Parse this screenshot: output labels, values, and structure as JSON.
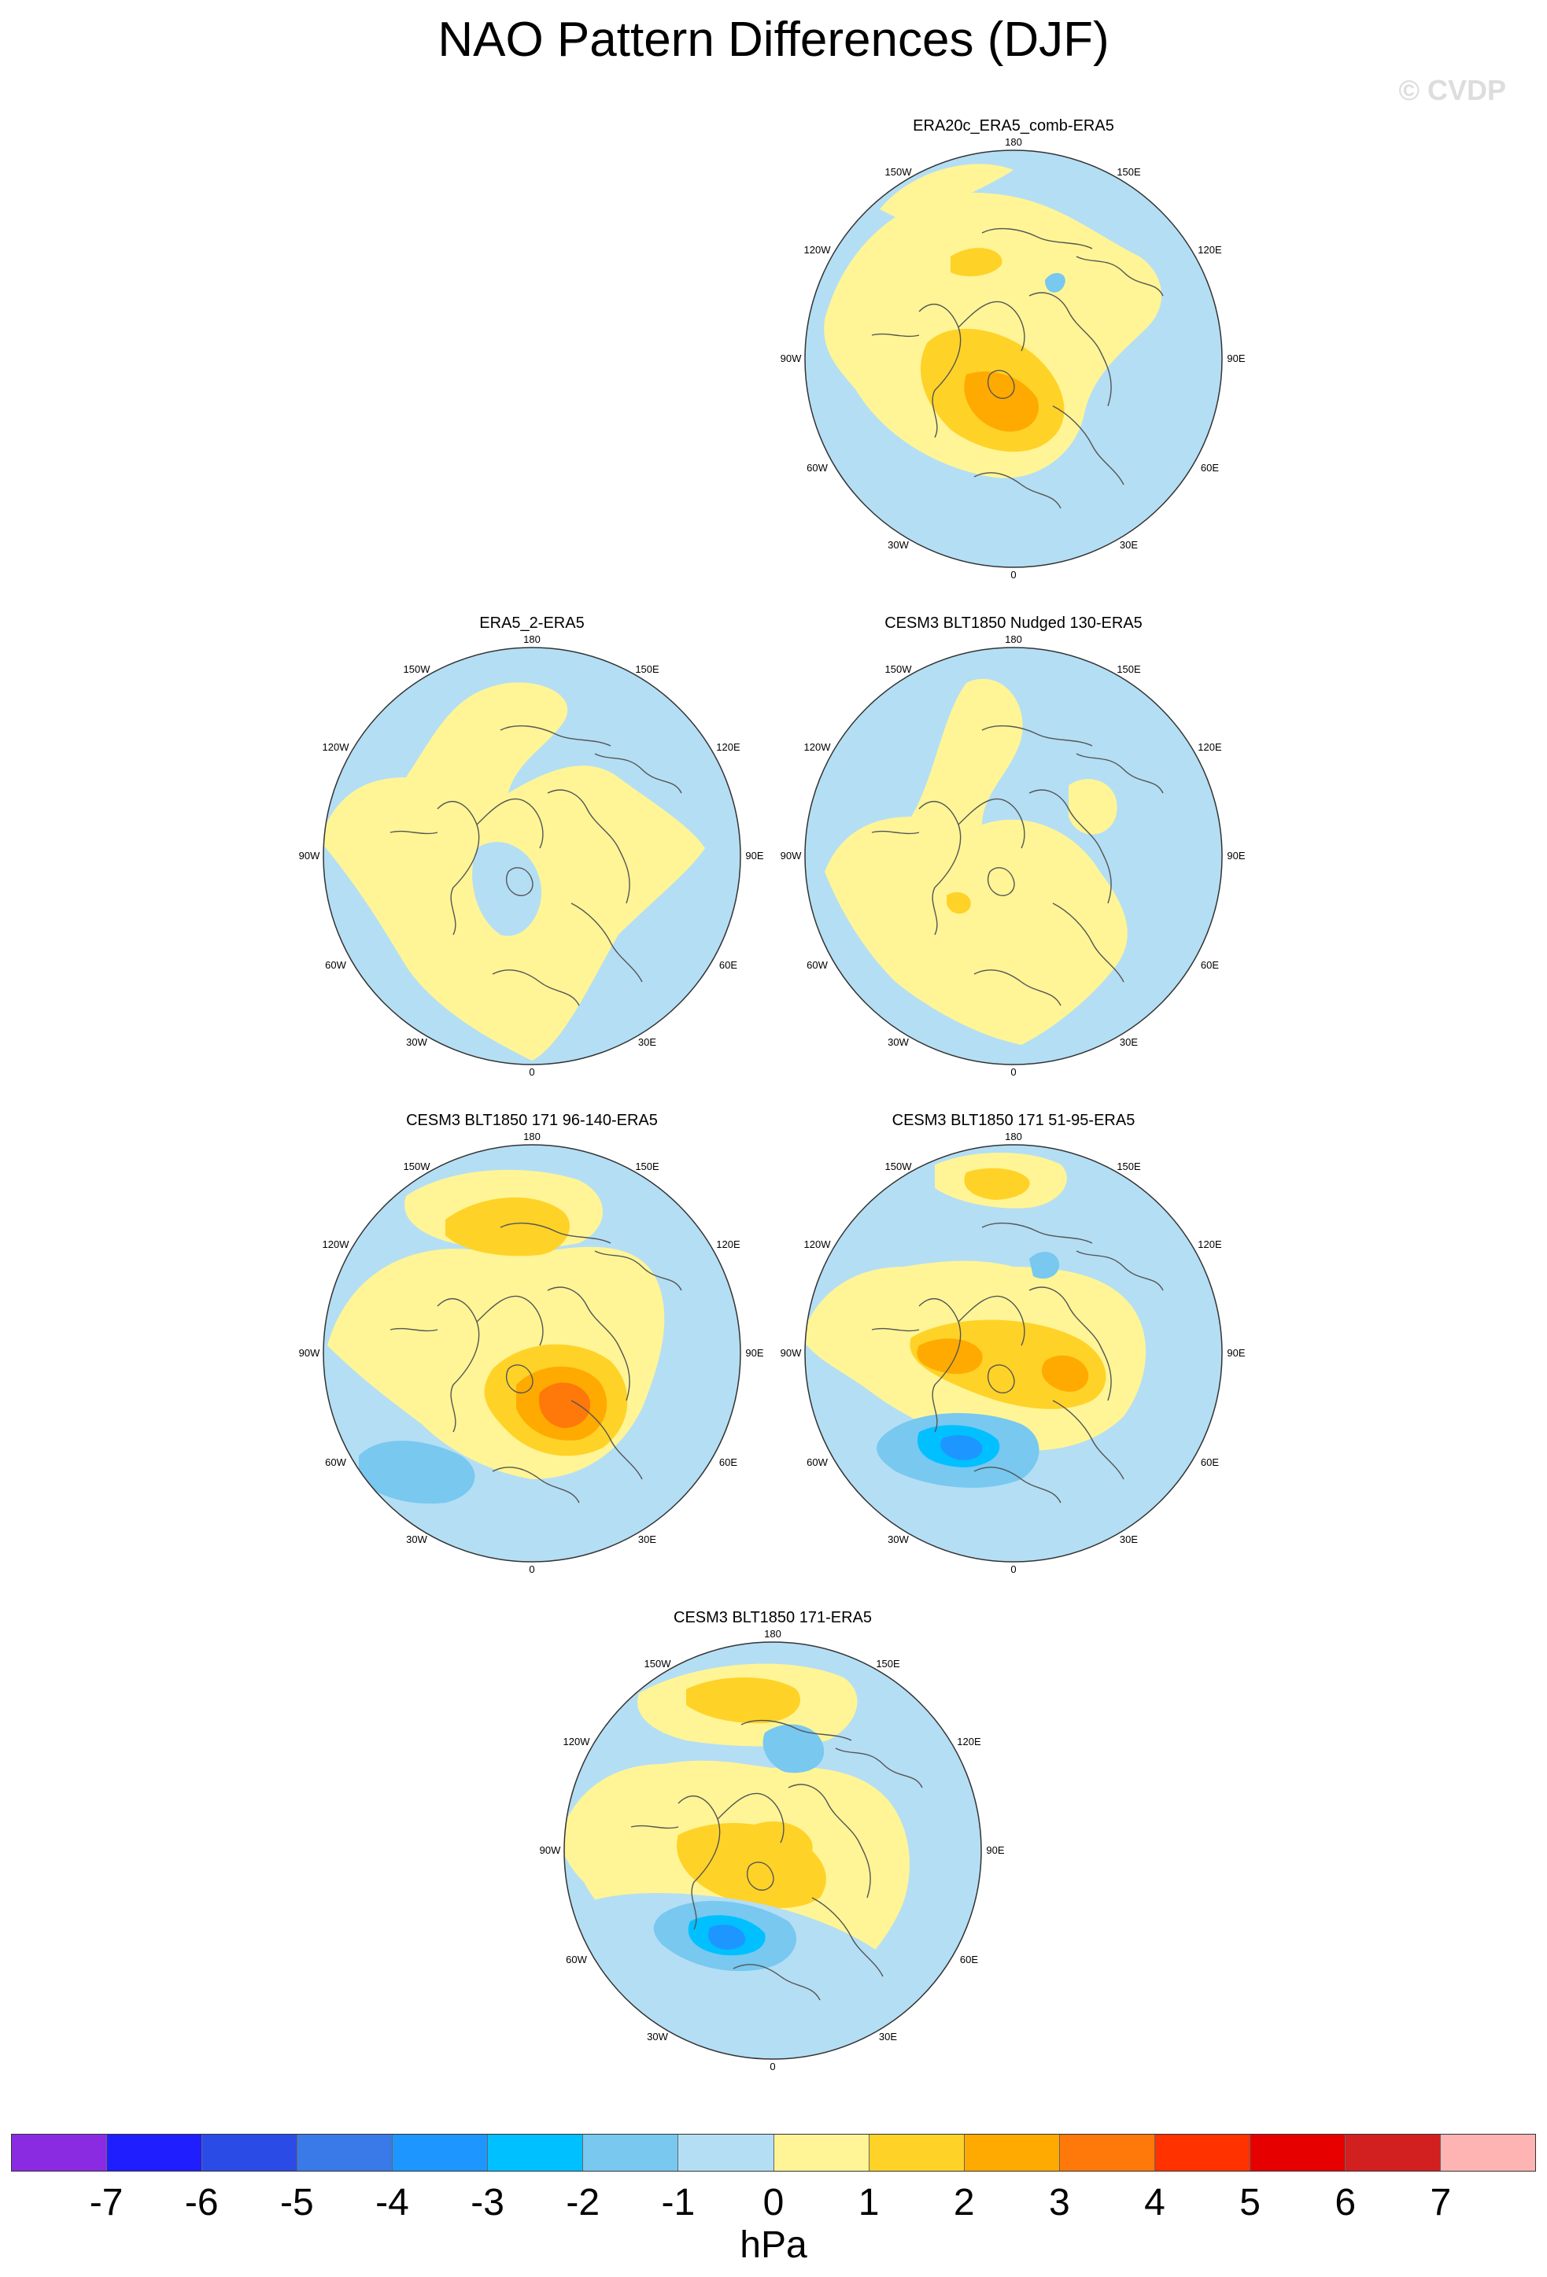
{
  "figure": {
    "title": "NAO Pattern Differences (DJF)",
    "watermark": "© CVDP"
  },
  "lon_labels": {
    "top": "180",
    "bottom": "0",
    "left": "90W",
    "right": "90E",
    "upper_left": "150W",
    "upper_right": "150E",
    "mid_upper_left": "120W",
    "mid_upper_right": "120E",
    "lower_left": "60W",
    "lower_right": "60E",
    "bottom_left": "30W",
    "bottom_right": "30E"
  },
  "panels": [
    {
      "title": "ERA20c_ERA5_comb-ERA5",
      "pattern": "era20c"
    },
    {
      "title": "ERA5_2-ERA5",
      "pattern": "era5_2"
    },
    {
      "title": "CESM3 BLT1850 Nudged 130-ERA5",
      "pattern": "nudged"
    },
    {
      "title": "CESM3 BLT1850 171 96-140-ERA5",
      "pattern": "r96"
    },
    {
      "title": "CESM3 BLT1850 171 51-95-ERA5",
      "pattern": "r51"
    },
    {
      "title": "CESM3 BLT1850 171-ERA5",
      "pattern": "r171"
    }
  ],
  "colorbar": {
    "units": "hPa",
    "ticks": [
      "-7",
      "-6",
      "-5",
      "-4",
      "-3",
      "-2",
      "-1",
      "0",
      "1",
      "2",
      "3",
      "4",
      "5",
      "6",
      "7"
    ],
    "colors": [
      "#8a2be2",
      "#1e1eff",
      "#2b4be6",
      "#3a7ae8",
      "#1e96ff",
      "#00c0ff",
      "#78c8f0",
      "#b4def4",
      "#fff596",
      "#ffd228",
      "#ffaa00",
      "#ff780a",
      "#ff3200",
      "#e60000",
      "#d22020",
      "#ffb4b4"
    ]
  }
}
